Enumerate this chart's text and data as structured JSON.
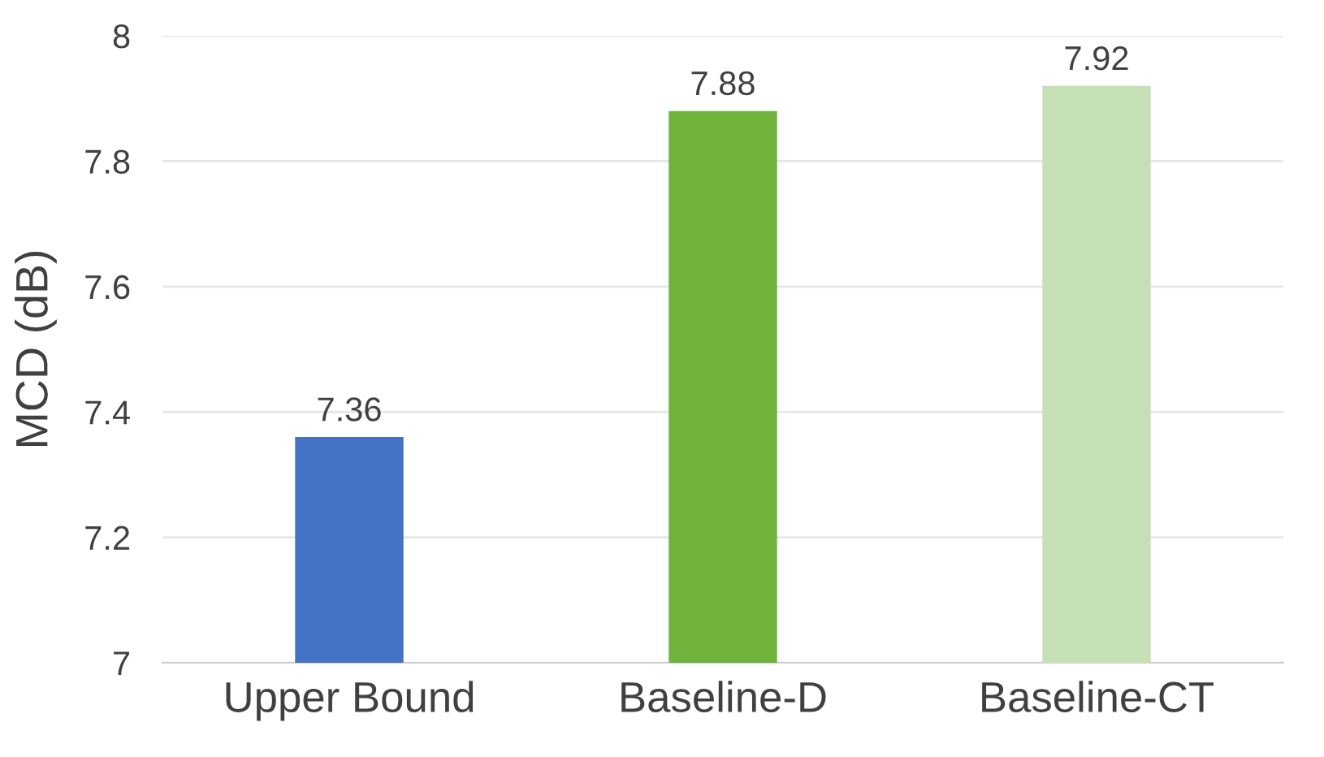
{
  "chart_data": {
    "type": "bar",
    "ylabel": "MCD (dB)",
    "categories": [
      "Upper Bound",
      "Baseline-D",
      "Baseline-CT"
    ],
    "values": [
      7.36,
      7.88,
      7.92
    ],
    "colors": [
      "#4472c4",
      "#70b33c",
      "#c5e0b4"
    ],
    "ylim": [
      7,
      8
    ],
    "yticks": [
      7,
      7.2,
      7.4,
      7.6,
      7.8,
      8
    ],
    "grid": "y",
    "data_labels": true,
    "legend": false
  }
}
